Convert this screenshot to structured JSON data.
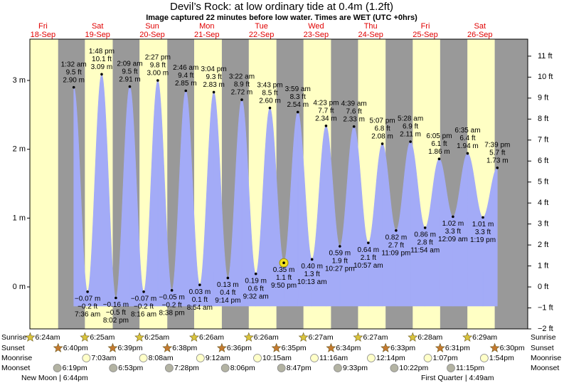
{
  "chart_data": {
    "type": "tide",
    "title": "Devil’s Rock: at low  ordinary tide at 0.4m (1.2ft)",
    "subtitle": "Image captured 22 minutes before low water. Times are WET (UTC +0hrs)",
    "ylim": [
      -0.61,
      3.6
    ],
    "yticks": [
      {
        "value": 0,
        "label": "0 m"
      },
      {
        "value": 1,
        "label": "1 m"
      },
      {
        "value": 2,
        "label": "2 m"
      },
      {
        "value": 3,
        "label": "3 m"
      }
    ],
    "y2lim": [
      -2,
      11.81
    ],
    "y2ticks": [
      {
        "value": -2,
        "label": "−2 ft"
      },
      {
        "value": -1,
        "label": "−1 ft"
      },
      {
        "value": 0,
        "label": "0 ft"
      },
      {
        "value": 1,
        "label": "1 ft"
      },
      {
        "value": 2,
        "label": "2 ft"
      },
      {
        "value": 3,
        "label": "3 ft"
      },
      {
        "value": 4,
        "label": "4 ft"
      },
      {
        "value": 5,
        "label": "5 ft"
      },
      {
        "value": 6,
        "label": "6 ft"
      },
      {
        "value": 7,
        "label": "7 ft"
      },
      {
        "value": 8,
        "label": "8 ft"
      },
      {
        "value": 9,
        "label": "9 ft"
      },
      {
        "value": 10,
        "label": "10 ft"
      },
      {
        "value": 11,
        "label": "11 ft"
      }
    ],
    "color": "#a3abf7",
    "row_labels": [
      "Sunrise",
      "Sunset",
      "Moonrise",
      "Moonset"
    ],
    "moon_phases": [
      "New Moon | 6:44pm",
      "First Quarter | 4:49am"
    ],
    "days": [
      {
        "name": "Fri",
        "date": "18-Sep",
        "sunrise": "6:24am",
        "sunset": "6:40pm",
        "moonset": "6:19pm",
        "tides": []
      },
      {
        "name": "Sat",
        "date": "19-Sep",
        "sunrise": "6:25am",
        "sunset": "6:39pm",
        "moonrise": "7:03am",
        "moonset": "6:53pm",
        "tides": [
          {
            "time": "1:32 am",
            "m": 2.9,
            "m_label": "2.90 m",
            "ft_label": "9.5 ft"
          },
          {
            "time": "7:36 am",
            "m": -0.07,
            "m_label": "−0.07 m",
            "ft_label": "−0.2 ft"
          },
          {
            "time": "1:48 pm",
            "m": 3.09,
            "m_label": "3.09 m",
            "ft_label": "10.1 ft"
          },
          {
            "time": "8:02 pm",
            "m": -0.16,
            "m_label": "−0.16 m",
            "ft_label": "−0.5 ft"
          }
        ]
      },
      {
        "name": "Sun",
        "date": "20-Sep",
        "sunrise": "6:25am",
        "sunset": "6:38pm",
        "moonrise": "8:08am",
        "moonset": "7:28pm",
        "tides": [
          {
            "time": "2:09 am",
            "m": 2.91,
            "m_label": "2.91 m",
            "ft_label": "9.5 ft"
          },
          {
            "time": "8:16 am",
            "m": -0.07,
            "m_label": "−0.07 m",
            "ft_label": "−0.2 ft"
          },
          {
            "time": "2:27 pm",
            "m": 3.0,
            "m_label": "3.00 m",
            "ft_label": "9.8 ft"
          },
          {
            "time": "8:38 pm",
            "m": -0.05,
            "m_label": "−0.05 m",
            "ft_label": "−0.2 ft"
          }
        ]
      },
      {
        "name": "Mon",
        "date": "21-Sep",
        "sunrise": "6:26am",
        "sunset": "6:36pm",
        "moonrise": "9:12am",
        "moonset": "8:06pm",
        "tides": [
          {
            "time": "2:46 am",
            "m": 2.85,
            "m_label": "2.85 m",
            "ft_label": "9.4 ft"
          },
          {
            "time": "8:54 am",
            "m": 0.03,
            "m_label": "0.03 m",
            "ft_label": "0.1 ft"
          },
          {
            "time": "3:04 pm",
            "m": 2.83,
            "m_label": "2.83 m",
            "ft_label": "9.3 ft"
          },
          {
            "time": "9:14 pm",
            "m": 0.13,
            "m_label": "0.13 m",
            "ft_label": "0.4 ft"
          }
        ]
      },
      {
        "name": "Tue",
        "date": "22-Sep",
        "sunrise": "6:26am",
        "sunset": "6:35pm",
        "moonrise": "10:15am",
        "moonset": "8:47pm",
        "tides": [
          {
            "time": "3:22 am",
            "m": 2.72,
            "m_label": "2.72 m",
            "ft_label": "8.9 ft"
          },
          {
            "time": "9:32 am",
            "m": 0.19,
            "m_label": "0.19 m",
            "ft_label": "0.6 ft"
          },
          {
            "time": "3:43 pm",
            "m": 2.6,
            "m_label": "2.60 m",
            "ft_label": "8.5 ft"
          },
          {
            "time": "9:50 pm",
            "m": 0.35,
            "m_label": "0.35 m",
            "ft_label": "1.1 ft",
            "current": true
          }
        ]
      },
      {
        "name": "Wed",
        "date": "23-Sep",
        "sunrise": "6:27am",
        "sunset": "6:34pm",
        "moonrise": "11:16am",
        "moonset": "9:33pm",
        "tides": [
          {
            "time": "3:59 am",
            "m": 2.54,
            "m_label": "2.54 m",
            "ft_label": "8.3 ft"
          },
          {
            "time": "10:13 am",
            "m": 0.4,
            "m_label": "0.40 m",
            "ft_label": "1.3 ft"
          },
          {
            "time": "4:23 pm",
            "m": 2.34,
            "m_label": "2.34 m",
            "ft_label": "7.7 ft"
          },
          {
            "time": "10:27 pm",
            "m": 0.59,
            "m_label": "0.59 m",
            "ft_label": "1.9 ft"
          }
        ]
      },
      {
        "name": "Thu",
        "date": "24-Sep",
        "sunrise": "6:27am",
        "sunset": "6:33pm",
        "moonrise": "12:14pm",
        "moonset": "10:22pm",
        "tides": [
          {
            "time": "4:39 am",
            "m": 2.33,
            "m_label": "2.33 m",
            "ft_label": "7.6 ft"
          },
          {
            "time": "10:57 am",
            "m": 0.64,
            "m_label": "0.64 m",
            "ft_label": "2.1 ft"
          },
          {
            "time": "5:07 pm",
            "m": 2.08,
            "m_label": "2.08 m",
            "ft_label": "6.8 ft"
          },
          {
            "time": "11:09 pm",
            "m": 0.82,
            "m_label": "0.82 m",
            "ft_label": "2.7 ft"
          }
        ]
      },
      {
        "name": "Fri",
        "date": "25-Sep",
        "sunrise": "6:28am",
        "sunset": "6:31pm",
        "moonrise": "1:07pm",
        "moonset": "11:15pm",
        "tides": [
          {
            "time": "5:28 am",
            "m": 2.11,
            "m_label": "2.11 m",
            "ft_label": "6.9 ft"
          },
          {
            "time": "11:54 am",
            "m": 0.86,
            "m_label": "0.86 m",
            "ft_label": "2.8 ft"
          },
          {
            "time": "6:05 pm",
            "m": 1.86,
            "m_label": "1.86 m",
            "ft_label": "6.1 ft"
          }
        ]
      },
      {
        "name": "Sat",
        "date": "26-Sep",
        "sunrise": "6:29am",
        "sunset": "6:30pm",
        "moonrise": "1:54pm",
        "tides": [
          {
            "time": "12:09 am",
            "m": 1.02,
            "m_label": "1.02 m",
            "ft_label": "3.3 ft"
          },
          {
            "time": "6:35 am",
            "m": 1.94,
            "m_label": "1.94 m",
            "ft_label": "6.4 ft"
          },
          {
            "time": "1:19 pm",
            "m": 1.01,
            "m_label": "1.01 m",
            "ft_label": "3.3 ft"
          },
          {
            "time": "7:39 pm",
            "m": 1.73,
            "m_label": "1.73 m",
            "ft_label": "5.7 ft"
          }
        ]
      }
    ]
  }
}
